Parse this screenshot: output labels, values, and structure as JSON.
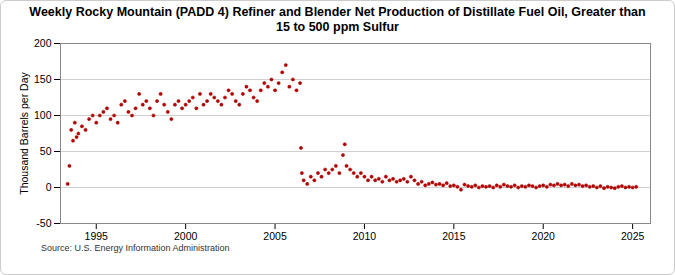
{
  "chart_data": {
    "type": "scatter",
    "title": "Weekly Rocky Mountain (PADD 4) Refiner and Blender Net Production of Distillate Fuel Oil, Greater than 15 to 500 ppm Sulfur",
    "y_label": "Thousand Barrels per Day",
    "caption": "Source: U.S. Energy Information Administration",
    "color": "#b00000",
    "marker": "circle",
    "grid": true,
    "xlim": [
      1993,
      2026
    ],
    "xticks": [
      1995,
      2000,
      2005,
      2010,
      2015,
      2020,
      2025
    ],
    "ylim": [
      -50,
      200
    ],
    "yticks": [
      -50,
      0,
      50,
      100,
      150,
      200
    ],
    "x": [
      1993.4,
      1993.5,
      1993.6,
      1993.7,
      1993.8,
      1993.9,
      1994.0,
      1994.2,
      1994.4,
      1994.6,
      1994.8,
      1995.0,
      1995.2,
      1995.4,
      1995.6,
      1995.8,
      1996.0,
      1996.2,
      1996.4,
      1996.6,
      1996.8,
      1997.0,
      1997.2,
      1997.4,
      1997.6,
      1997.8,
      1998.0,
      1998.2,
      1998.4,
      1998.6,
      1998.8,
      1999.0,
      1999.2,
      1999.4,
      1999.6,
      1999.8,
      2000.0,
      2000.2,
      2000.4,
      2000.6,
      2000.8,
      2001.0,
      2001.2,
      2001.4,
      2001.6,
      2001.8,
      2002.0,
      2002.2,
      2002.4,
      2002.6,
      2002.8,
      2003.0,
      2003.2,
      2003.4,
      2003.6,
      2003.8,
      2004.0,
      2004.2,
      2004.4,
      2004.6,
      2004.8,
      2005.0,
      2005.2,
      2005.4,
      2005.6,
      2005.8,
      2006.0,
      2006.2,
      2006.4,
      2006.45,
      2006.5,
      2006.6,
      2006.8,
      2007.0,
      2007.2,
      2007.4,
      2007.6,
      2007.8,
      2008.0,
      2008.2,
      2008.4,
      2008.6,
      2008.8,
      2008.9,
      2009.0,
      2009.2,
      2009.4,
      2009.6,
      2009.8,
      2010.0,
      2010.2,
      2010.4,
      2010.6,
      2010.8,
      2011.0,
      2011.2,
      2011.4,
      2011.6,
      2011.8,
      2012.0,
      2012.2,
      2012.4,
      2012.6,
      2012.8,
      2013.0,
      2013.2,
      2013.4,
      2013.6,
      2013.8,
      2014.0,
      2014.2,
      2014.4,
      2014.6,
      2014.8,
      2015.0,
      2015.2,
      2015.4,
      2015.6,
      2015.8,
      2016.0,
      2016.2,
      2016.4,
      2016.6,
      2016.8,
      2017.0,
      2017.2,
      2017.4,
      2017.6,
      2017.8,
      2018.0,
      2018.2,
      2018.4,
      2018.6,
      2018.8,
      2019.0,
      2019.2,
      2019.4,
      2019.6,
      2019.8,
      2020.0,
      2020.2,
      2020.4,
      2020.6,
      2020.8,
      2021.0,
      2021.2,
      2021.4,
      2021.6,
      2021.8,
      2022.0,
      2022.2,
      2022.4,
      2022.6,
      2022.8,
      2023.0,
      2023.2,
      2023.4,
      2023.6,
      2023.8,
      2024.0,
      2024.2,
      2024.4,
      2024.6,
      2024.8,
      2025.0,
      2025.2
    ],
    "values": [
      5,
      30,
      80,
      65,
      90,
      70,
      75,
      85,
      80,
      95,
      100,
      90,
      100,
      105,
      110,
      95,
      100,
      90,
      115,
      120,
      105,
      100,
      110,
      130,
      115,
      120,
      110,
      100,
      120,
      130,
      115,
      105,
      95,
      115,
      120,
      110,
      115,
      120,
      125,
      110,
      130,
      115,
      120,
      130,
      125,
      120,
      115,
      125,
      135,
      130,
      120,
      115,
      130,
      140,
      135,
      125,
      120,
      135,
      145,
      140,
      150,
      135,
      145,
      160,
      170,
      140,
      150,
      135,
      145,
      55,
      20,
      10,
      5,
      15,
      10,
      20,
      15,
      25,
      20,
      25,
      30,
      20,
      45,
      60,
      30,
      25,
      20,
      15,
      20,
      15,
      10,
      15,
      10,
      12,
      8,
      15,
      10,
      12,
      8,
      10,
      12,
      8,
      15,
      10,
      5,
      8,
      3,
      5,
      7,
      4,
      5,
      3,
      6,
      2,
      3,
      1,
      -3,
      4,
      2,
      1,
      3,
      0,
      2,
      1,
      2,
      0,
      3,
      1,
      4,
      2,
      1,
      3,
      0,
      2,
      1,
      3,
      2,
      0,
      2,
      3,
      1,
      4,
      3,
      5,
      3,
      4,
      2,
      5,
      3,
      4,
      2,
      3,
      1,
      2,
      0,
      2,
      -1,
      1,
      0,
      -1,
      1,
      2,
      0,
      1,
      0,
      1
    ]
  }
}
